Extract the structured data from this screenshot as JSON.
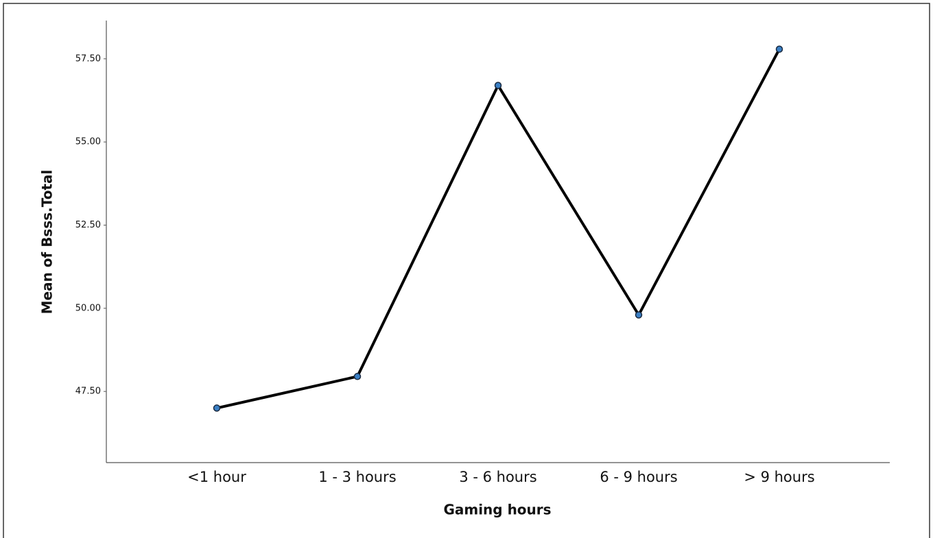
{
  "chart_data": {
    "type": "line",
    "x_label": "Gaming hours",
    "y_label": "Mean of Bsss.Total",
    "categories": [
      "<1 hour",
      "1 - 3 hours",
      "3 - 6 hours",
      "6 - 9 hours",
      "> 9 hours"
    ],
    "series": [
      {
        "name": "Mean of Bsss.Total",
        "color": "#000000",
        "values": [
          47.0,
          47.95,
          56.7,
          49.8,
          57.79
        ]
      }
    ],
    "marker_color": "#3a7fc4",
    "ylim": [
      45.36,
      58.65
    ],
    "yticks": [
      {
        "value": 47.5,
        "label": "47.50"
      },
      {
        "value": 50,
        "label": "50.00"
      },
      {
        "value": 52.5,
        "label": "52.50"
      },
      {
        "value": 55,
        "label": "55.00"
      },
      {
        "value": 57.5,
        "label": "57.50"
      }
    ],
    "grid": false
  }
}
